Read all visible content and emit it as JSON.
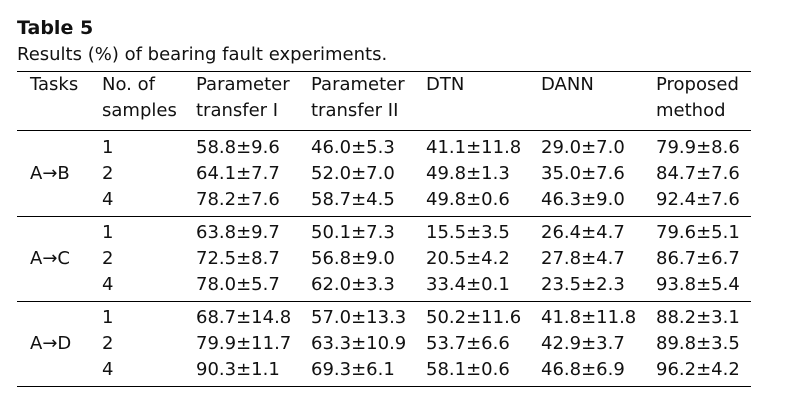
{
  "table": {
    "label": "Table 5",
    "caption": "Results (%) of bearing fault experiments.",
    "headers": [
      [
        "Tasks"
      ],
      [
        "No. of",
        "samples"
      ],
      [
        "Parameter",
        "transfer I"
      ],
      [
        "Parameter",
        "transfer II"
      ],
      [
        "DTN"
      ],
      [
        "DANN"
      ],
      [
        "Proposed",
        "method"
      ]
    ],
    "groups": [
      {
        "task": "A→B",
        "rows": [
          [
            "1",
            "58.8±9.6",
            "46.0±5.3",
            "41.1±11.8",
            "29.0±7.0",
            "79.9±8.6"
          ],
          [
            "2",
            "64.1±7.7",
            "52.0±7.0",
            "49.8±1.3",
            "35.0±7.6",
            "84.7±7.6"
          ],
          [
            "4",
            "78.2±7.6",
            "58.7±4.5",
            "49.8±0.6",
            "46.3±9.0",
            "92.4±7.6"
          ]
        ]
      },
      {
        "task": "A→C",
        "rows": [
          [
            "1",
            "63.8±9.7",
            "50.1±7.3",
            "15.5±3.5",
            "26.4±4.7",
            "79.6±5.1"
          ],
          [
            "2",
            "72.5±8.7",
            "56.8±9.0",
            "20.5±4.2",
            "27.8±4.7",
            "86.7±6.7"
          ],
          [
            "4",
            "78.0±5.7",
            "62.0±3.3",
            "33.4±0.1",
            "23.5±2.3",
            "93.8±5.4"
          ]
        ]
      },
      {
        "task": "A→D",
        "rows": [
          [
            "1",
            "68.7±14.8",
            "57.0±13.3",
            "50.2±11.6",
            "41.8±11.8",
            "88.2±3.1"
          ],
          [
            "2",
            "79.9±11.7",
            "63.3±10.9",
            "53.7±6.6",
            "42.9±3.7",
            "89.8±3.5"
          ],
          [
            "4",
            "90.3±1.1",
            "69.3±6.1",
            "58.1±0.6",
            "46.8±6.9",
            "96.2±4.2"
          ]
        ]
      }
    ]
  }
}
